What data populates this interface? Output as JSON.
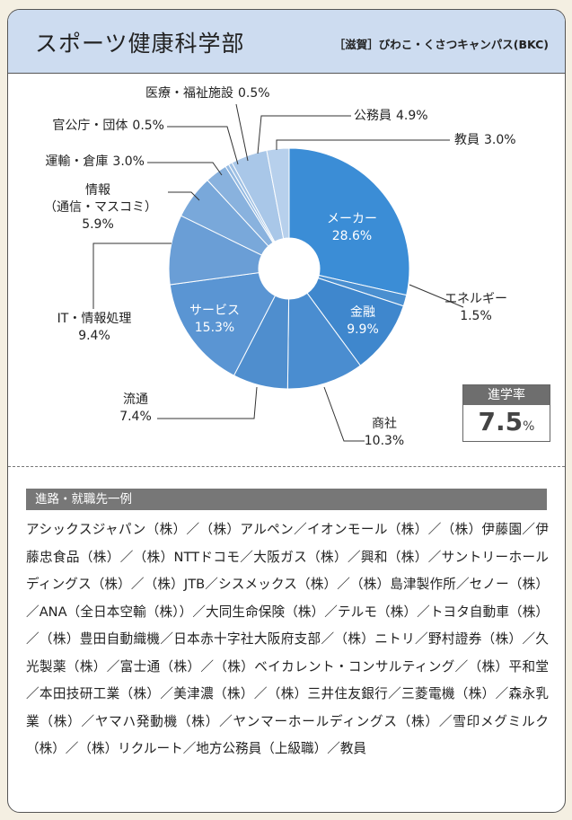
{
  "header": {
    "title": "スポーツ健康科学部",
    "campus": "［滋賀］びわこ・くさつキャンパス(BKC)"
  },
  "chart_data": {
    "type": "pie",
    "categories": [
      "メーカー",
      "エネルギー",
      "金融",
      "商社",
      "流通",
      "サービス",
      "IT・情報処理",
      "情報\n（通信・マスコミ）",
      "運輸・倉庫",
      "官公庁・団体",
      "医療・福祉施設",
      "公務員",
      "教員"
    ],
    "values": [
      28.6,
      1.5,
      9.9,
      10.3,
      7.4,
      15.3,
      9.4,
      5.9,
      3.0,
      0.5,
      0.5,
      4.9,
      3.0
    ],
    "value_labels": [
      "28.6%",
      "1.5%",
      "9.9%",
      "10.3%",
      "7.4%",
      "15.3%",
      "9.4%",
      "5.9%",
      "3.0%",
      "0.5%",
      "0.5%",
      "4.9%",
      "3.0%"
    ],
    "colors": [
      "#3b8dd6",
      "#4a8fd0",
      "#3f87cd",
      "#4a8dd0",
      "#4f8ece",
      "#5a95d3",
      "#6a9ed6",
      "#79a8da",
      "#89b2de",
      "#94bae2",
      "#a0c1e4",
      "#a9c7e8",
      "#b7d0ec"
    ]
  },
  "rate": {
    "label": "進学率",
    "value": 7.5,
    "unit": "%"
  },
  "careers": {
    "heading": "進路・就職先一例",
    "text": "アシックスジャパン（株）／（株）アルペン／イオンモール（株）／（株）伊藤園／伊藤忠食品（株）／（株）NTTドコモ／大阪ガス（株）／興和（株）／サントリーホールディングス（株）／（株）JTB／シスメックス（株）／（株）島津製作所／セノー（株）／ANA（全日本空輸（株））／大同生命保険（株）／テルモ（株）／トヨタ自動車（株）／（株）豊田自動織機／日本赤十字社大阪府支部／（株）ニトリ／野村證券（株）／久光製薬（株）／富士通（株）／（株）ベイカレント・コンサルティング／（株）平和堂／本田技研工業（株）／美津濃（株）／（株）三井住友銀行／三菱電機（株）／森永乳業（株）／ヤマハ発動機（株）／ヤンマーホールディングス（株）／雪印メグミルク（株）／（株）リクルート／地方公務員（上級職）／教員"
  }
}
